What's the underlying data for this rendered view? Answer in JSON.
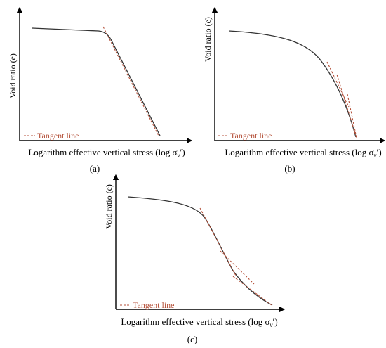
{
  "figure": {
    "axis_x_label": "Logarithm effective vertical stress (log σ",
    "axis_x_sub": "v",
    "axis_x_tail": "′)",
    "axis_y_label": "Void ratio (e)",
    "legend_label": "Tangent line",
    "tangent_color": "#b5523b",
    "panels": [
      {
        "id": "a",
        "caption": "(a)"
      },
      {
        "id": "b",
        "caption": "(b)"
      },
      {
        "id": "c",
        "caption": "(c)"
      }
    ]
  }
}
